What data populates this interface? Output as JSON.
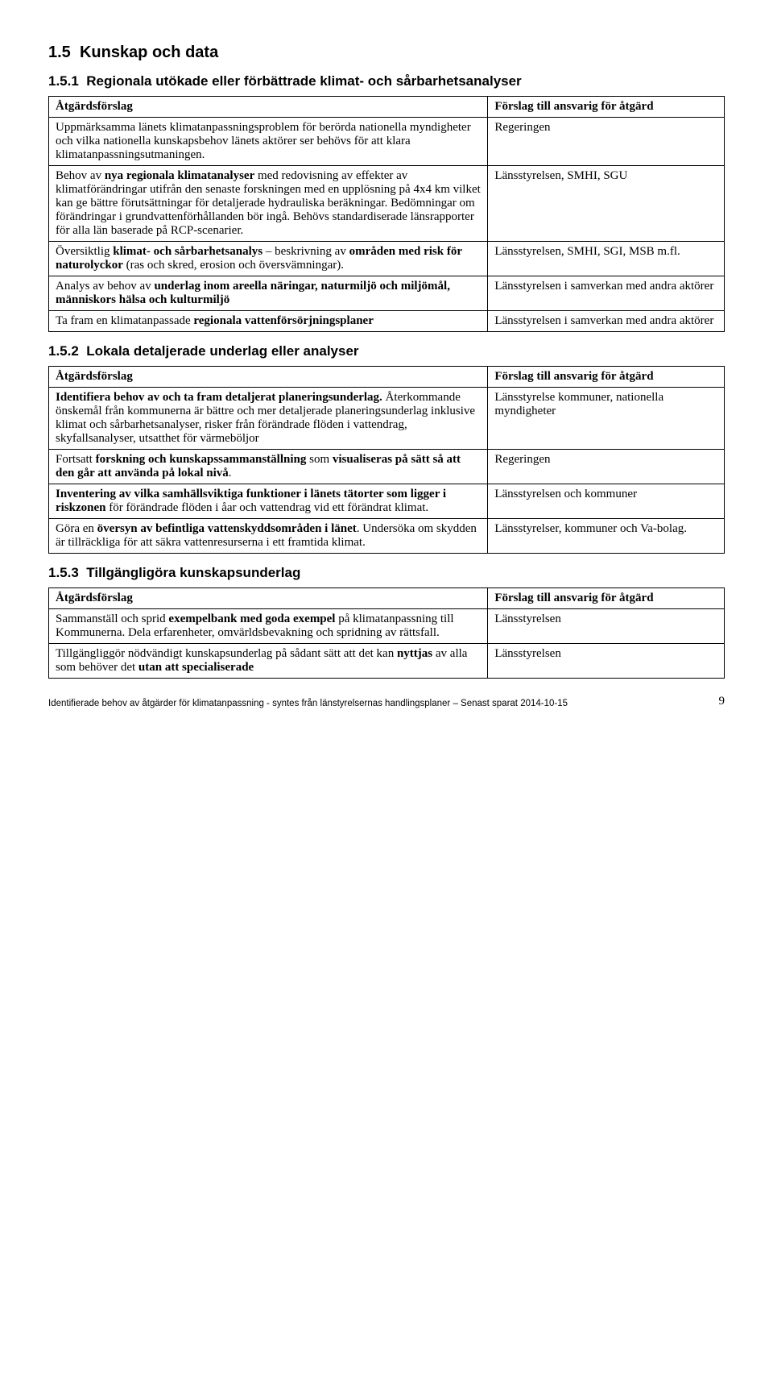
{
  "section15": {
    "number": "1.5",
    "title": "Kunskap och data"
  },
  "section151": {
    "number": "1.5.1",
    "title": "Regionala utökade eller förbättrade klimat- och sårbarhetsanalyser"
  },
  "table1": {
    "header_left": "Åtgärdsförslag",
    "header_right": "Förslag till ansvarig för åtgärd",
    "rows": [
      {
        "left_html": "Uppmärksamma länets klimatanpassningsproblem för berörda nationella myndigheter och vilka nationella kunskapsbehov länets aktörer ser behövs för att klara klimatanpassningsutmaningen.",
        "right": "Regeringen"
      },
      {
        "left_html": "Behov av <b>nya regionala klimatanalyser</b> med redovisning av effekter av klimatförändringar utifrån den senaste forskningen med en upplösning på 4x4 km vilket kan ge bättre förutsättningar för detaljerade hydrauliska beräkningar. Bedömningar om förändringar i grundvattenförhållanden bör ingå. Behövs standardiserade länsrapporter för alla län baserade på RCP-scenarier.",
        "right": "Länsstyrelsen, SMHI, SGU"
      },
      {
        "left_html": "Översiktlig <b>klimat- och sårbarhetsanalys</b> – beskrivning av <b>områden med risk för naturolyckor</b> (ras och skred, erosion och översvämningar).",
        "right": "Länsstyrelsen, SMHI, SGI, MSB m.fl."
      },
      {
        "left_html": "Analys av behov av <b>underlag inom areella näringar, naturmiljö och miljömål, människors hälsa och kulturmiljö</b>",
        "right": "Länsstyrelsen i samverkan med andra aktörer"
      },
      {
        "left_html": "Ta fram en klimatanpassade <b>regionala vattenförsörjningsplaner</b>",
        "right": "Länsstyrelsen i samverkan med andra aktörer"
      }
    ]
  },
  "section152": {
    "number": "1.5.2",
    "title": "Lokala detaljerade underlag eller analyser"
  },
  "table2": {
    "header_left": "Åtgärdsförslag",
    "header_right": "Förslag till ansvarig för åtgärd",
    "rows": [
      {
        "left_html": "<b>Identifiera behov av och ta fram detaljerat planeringsunderlag.</b> Återkommande önskemål från kommunerna är bättre och mer detaljerade planeringsunderlag inklusive klimat och sårbarhetsanalyser, risker från förändrade flöden i vattendrag, skyfallsanalyser, utsatthet för värmeböljor",
        "right": "Länsstyrelse kommuner, nationella myndigheter"
      },
      {
        "left_html": "Fortsatt <b>forskning och kunskapssammanställning</b> som <b>visualiseras på sätt så att den går att använda på lokal nivå</b>.",
        "right": "Regeringen"
      },
      {
        "left_html": "<b>Inventering av vilka samhällsviktiga funktioner i länets tätorter som ligger i riskzonen</b> för förändrade flöden i åar och vattendrag vid ett förändrat klimat.",
        "right": "Länsstyrelsen och kommuner"
      },
      {
        "left_html": "Göra en <b>översyn av befintliga vattenskyddsområden i länet</b>. Undersöka om skydden är tillräckliga för att säkra vattenresurserna i ett framtida klimat.",
        "right": "Länsstyrelser, kommuner och Va-bolag."
      }
    ]
  },
  "section153": {
    "number": "1.5.3",
    "title": "Tillgängligöra kunskapsunderlag"
  },
  "table3": {
    "header_left": "Åtgärdsförslag",
    "header_right": "Förslag till ansvarig för åtgärd",
    "rows": [
      {
        "left_html": "Sammanställ och sprid <b>exempelbank med goda exempel</b> på klimatanpassning till Kommunerna. Dela erfarenheter, omvärldsbevakning och spridning av rättsfall.",
        "right": "Länsstyrelsen"
      },
      {
        "left_html": "Tillgängliggör nödvändigt kunskapsunderlag på sådant sätt att det kan <b>nyttjas</b> av alla som behöver det <b>utan att specialiserade</b>",
        "right": "Länsstyrelsen"
      }
    ]
  },
  "footer": {
    "text": "Identifierade behov av åtgärder för klimatanpassning - syntes från länstyrelsernas handlingsplaner – Senast sparat 2014-10-15",
    "page": "9"
  }
}
